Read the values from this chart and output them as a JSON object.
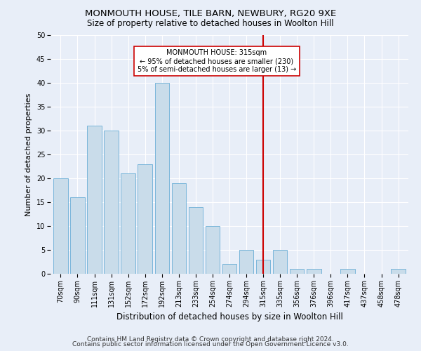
{
  "title1": "MONMOUTH HOUSE, TILE BARN, NEWBURY, RG20 9XE",
  "title2": "Size of property relative to detached houses in Woolton Hill",
  "xlabel": "Distribution of detached houses by size in Woolton Hill",
  "ylabel": "Number of detached properties",
  "categories": [
    "70sqm",
    "90sqm",
    "111sqm",
    "131sqm",
    "152sqm",
    "172sqm",
    "192sqm",
    "213sqm",
    "233sqm",
    "254sqm",
    "274sqm",
    "294sqm",
    "315sqm",
    "335sqm",
    "356sqm",
    "376sqm",
    "396sqm",
    "417sqm",
    "437sqm",
    "458sqm",
    "478sqm"
  ],
  "values": [
    20,
    16,
    31,
    30,
    21,
    23,
    40,
    19,
    14,
    10,
    2,
    5,
    3,
    5,
    1,
    1,
    0,
    1,
    0,
    0,
    1
  ],
  "bar_color": "#c9dcea",
  "bar_edge_color": "#6aaed6",
  "highlight_index": 12,
  "highlight_line_color": "#cc0000",
  "annotation_text": "MONMOUTH HOUSE: 315sqm\n← 95% of detached houses are smaller (230)\n5% of semi-detached houses are larger (13) →",
  "annotation_box_color": "#ffffff",
  "annotation_box_edge": "#cc0000",
  "ylim": [
    0,
    50
  ],
  "yticks": [
    0,
    5,
    10,
    15,
    20,
    25,
    30,
    35,
    40,
    45,
    50
  ],
  "footer1": "Contains HM Land Registry data © Crown copyright and database right 2024.",
  "footer2": "Contains public sector information licensed under the Open Government Licence v3.0.",
  "bg_color": "#e8eef8",
  "plot_bg_color": "#e8eef8",
  "title_fontsize": 9.5,
  "subtitle_fontsize": 8.5,
  "axis_label_fontsize": 8,
  "tick_fontsize": 7,
  "annotation_fontsize": 7,
  "footer_fontsize": 6.5
}
